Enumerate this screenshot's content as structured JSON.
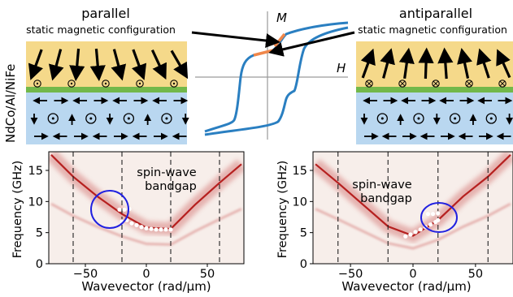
{
  "schematic": {
    "side_label": "NdCo/Al/NiFe",
    "left_title": "parallel",
    "left_subtitle": "static magnetic configuration",
    "right_title": "antiparallel",
    "right_subtitle": "static magnetic configuration",
    "hysteresis": {
      "ylabel": "M",
      "xlabel": "H"
    }
  },
  "colors": {
    "nd_layer": "#f5d98a",
    "spacer": "#72b84a",
    "nife_layer": "#b9d7f0",
    "loop": "#2a7fc1",
    "loop_highlight": "#f0874a",
    "gap_circle": "#2020e0",
    "spectrum": "#b01010"
  },
  "chart_data": [
    {
      "type": "heatmap",
      "title": "",
      "annotation": "spin-wave bandgap",
      "xlabel": "Wavevector (rad/μm)",
      "ylabel": "Frequency (GHz)",
      "xlim": [
        -80,
        80
      ],
      "ylim": [
        0,
        18
      ],
      "xticks": [
        -50,
        0,
        50
      ],
      "yticks": [
        0,
        5,
        10,
        15
      ],
      "boundaries": [
        -60,
        -20,
        20,
        60
      ],
      "dispersion": {
        "x": [
          -78,
          -60,
          -40,
          -20,
          0,
          20,
          40,
          60,
          78
        ],
        "y": [
          17.5,
          14,
          10.8,
          8,
          5.8,
          5.6,
          9.5,
          13,
          16
        ]
      },
      "mode_points": {
        "x": [
          -20,
          -16,
          -12,
          -8,
          -4,
          0,
          4,
          8,
          12,
          16,
          20
        ],
        "y": [
          6.8,
          7.0,
          6.5,
          6.2,
          5.9,
          5.7,
          5.6,
          5.5,
          5.5,
          5.5,
          5.5
        ]
      },
      "gap_points": {
        "x": [
          -22,
          -18,
          -14
        ],
        "y": [
          8.7,
          8.7,
          8.8
        ]
      }
    },
    {
      "type": "heatmap",
      "title": "",
      "annotation": "spin-wave bandgap",
      "xlabel": "Wavevector (rad/μm)",
      "ylabel": "Frequency (GHz)",
      "xlim": [
        -80,
        80
      ],
      "ylim": [
        0,
        18
      ],
      "xticks": [
        -50,
        0,
        50
      ],
      "yticks": [
        0,
        5,
        10,
        15
      ],
      "boundaries": [
        -60,
        -20,
        20,
        60
      ],
      "dispersion": {
        "x": [
          -78,
          -60,
          -40,
          -20,
          0,
          20,
          40,
          60,
          78
        ],
        "y": [
          16,
          13,
          9.5,
          6,
          4.5,
          7,
          10.8,
          14,
          17.5
        ]
      },
      "mode_points": {
        "x": [
          -6,
          -2,
          2,
          6,
          10,
          14,
          18,
          20
        ],
        "y": [
          4.4,
          4.7,
          5.1,
          5.5,
          5.9,
          6.3,
          6.7,
          7.0
        ]
      },
      "gap_points": {
        "x": [
          12,
          16,
          20
        ],
        "y": [
          8.0,
          8.0,
          8.1
        ]
      }
    }
  ]
}
